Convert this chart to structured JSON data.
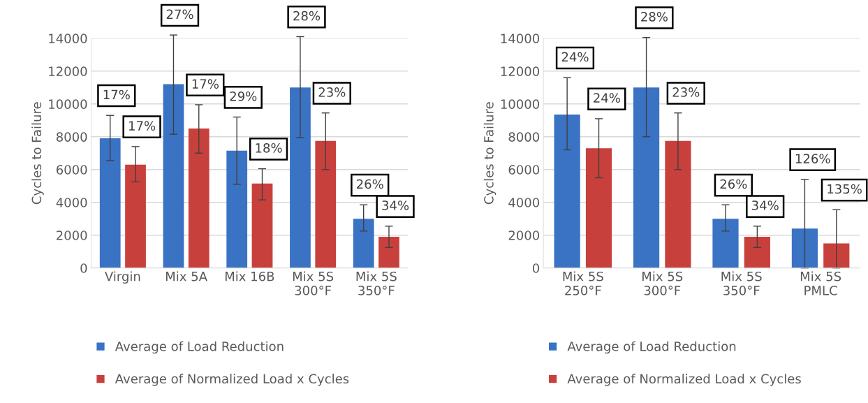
{
  "chart_data": [
    {
      "type": "bar",
      "categories": [
        "Virgin",
        "Mix 5A",
        "Mix 16B",
        "Mix 5S\n300°F",
        "Mix 5S\n350°F"
      ],
      "ylabel": "Cycles to Failure",
      "ylim": [
        0,
        14000
      ],
      "yticks": [
        0,
        2000,
        4000,
        6000,
        8000,
        10000,
        12000,
        14000
      ],
      "grid": "y",
      "legend": "bottom",
      "series": [
        {
          "name": "Average of Load Reduction",
          "color": "#3a72c4",
          "values": [
            7900,
            11200,
            7150,
            11000,
            3000
          ],
          "errors": [
            [
              6550,
              9300
            ],
            [
              8150,
              14200
            ],
            [
              5100,
              9200
            ],
            [
              7950,
              14100
            ],
            [
              2250,
              3850
            ]
          ]
        },
        {
          "name": "Average of Normalized Load x Cycles",
          "color": "#c8403c",
          "values": [
            6300,
            8500,
            5150,
            7750,
            1900
          ],
          "errors": [
            [
              5250,
              7400
            ],
            [
              7000,
              9950
            ],
            [
              4150,
              6050
            ],
            [
              6000,
              9450
            ],
            [
              1250,
              2550
            ]
          ]
        }
      ],
      "annotations": [
        "17%",
        "17%",
        "27%",
        "17%",
        "29%",
        "18%",
        "28%",
        "23%",
        "26%",
        "34%"
      ]
    },
    {
      "type": "bar",
      "categories": [
        "Mix 5S\n250°F",
        "Mix 5S\n300°F",
        "Mix 5S\n350°F",
        "Mix 5S\nPMLC"
      ],
      "ylabel": "Cycles to Failure",
      "ylim": [
        0,
        14000
      ],
      "yticks": [
        0,
        2000,
        4000,
        6000,
        8000,
        10000,
        12000,
        14000
      ],
      "grid": "y",
      "legend": "bottom",
      "series": [
        {
          "name": "Average of Load Reduction",
          "color": "#3a72c4",
          "values": [
            9350,
            11000,
            3000,
            2400
          ],
          "errors": [
            [
              7200,
              11600
            ],
            [
              8000,
              14050
            ],
            [
              2250,
              3850
            ],
            [
              0,
              5400
            ]
          ]
        },
        {
          "name": "Average of Normalized Load x Cycles",
          "color": "#c8403c",
          "values": [
            7300,
            7750,
            1900,
            1500
          ],
          "errors": [
            [
              5500,
              9100
            ],
            [
              6000,
              9450
            ],
            [
              1250,
              2550
            ],
            [
              0,
              3550
            ]
          ]
        }
      ],
      "annotations": [
        "24%",
        "24%",
        "28%",
        "23%",
        "26%",
        "34%",
        "126%",
        "135%"
      ]
    }
  ]
}
